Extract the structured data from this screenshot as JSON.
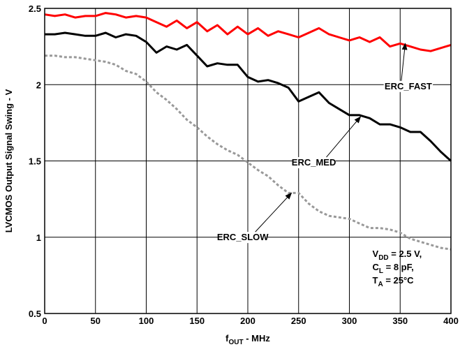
{
  "chart_data": {
    "type": "line",
    "xlabel": {
      "main": "f",
      "sub": "OUT",
      "rest": " - MHz"
    },
    "ylabel": "LVCMOS Output Signal Swing - V",
    "xlim": [
      0,
      400
    ],
    "ylim": [
      0.5,
      2.5
    ],
    "xticks": [
      0,
      50,
      100,
      150,
      200,
      250,
      300,
      350,
      400
    ],
    "yticks": [
      0.5,
      1,
      1.5,
      2,
      2.5
    ],
    "grid": true,
    "series": [
      {
        "name": "ERC_FAST",
        "color": "#ff0000",
        "style": "solid",
        "x": [
          0,
          10,
          20,
          30,
          40,
          50,
          60,
          70,
          80,
          90,
          100,
          110,
          120,
          130,
          140,
          150,
          160,
          170,
          180,
          190,
          200,
          210,
          220,
          230,
          240,
          250,
          260,
          270,
          280,
          290,
          300,
          310,
          320,
          330,
          340,
          350,
          360,
          370,
          380,
          390,
          400
        ],
        "y": [
          2.46,
          2.45,
          2.46,
          2.44,
          2.45,
          2.45,
          2.47,
          2.46,
          2.44,
          2.45,
          2.44,
          2.41,
          2.38,
          2.42,
          2.37,
          2.41,
          2.35,
          2.39,
          2.33,
          2.38,
          2.33,
          2.37,
          2.32,
          2.35,
          2.33,
          2.31,
          2.34,
          2.37,
          2.33,
          2.31,
          2.29,
          2.31,
          2.28,
          2.31,
          2.25,
          2.27,
          2.25,
          2.23,
          2.22,
          2.24,
          2.26
        ]
      },
      {
        "name": "ERC_MED",
        "color": "#000000",
        "style": "solid",
        "x": [
          0,
          10,
          20,
          30,
          40,
          50,
          60,
          70,
          80,
          90,
          100,
          110,
          120,
          130,
          140,
          150,
          160,
          170,
          180,
          190,
          200,
          210,
          220,
          230,
          240,
          250,
          260,
          270,
          280,
          290,
          300,
          310,
          320,
          330,
          340,
          350,
          360,
          370,
          380,
          390,
          400
        ],
        "y": [
          2.33,
          2.33,
          2.34,
          2.33,
          2.32,
          2.32,
          2.34,
          2.31,
          2.33,
          2.32,
          2.28,
          2.21,
          2.25,
          2.23,
          2.26,
          2.19,
          2.12,
          2.14,
          2.13,
          2.13,
          2.05,
          2.02,
          2.03,
          2.01,
          1.98,
          1.89,
          1.92,
          1.95,
          1.88,
          1.84,
          1.8,
          1.8,
          1.78,
          1.74,
          1.74,
          1.72,
          1.69,
          1.69,
          1.63,
          1.56,
          1.5
        ]
      },
      {
        "name": "ERC_SLOW",
        "color": "#999999",
        "style": "dashed",
        "x": [
          0,
          10,
          20,
          30,
          40,
          50,
          60,
          70,
          80,
          90,
          100,
          110,
          120,
          130,
          140,
          150,
          160,
          170,
          180,
          190,
          200,
          210,
          220,
          230,
          240,
          250,
          260,
          270,
          280,
          290,
          300,
          310,
          320,
          330,
          340,
          350,
          360,
          370,
          380,
          390,
          400
        ],
        "y": [
          2.19,
          2.19,
          2.18,
          2.18,
          2.17,
          2.16,
          2.15,
          2.13,
          2.09,
          2.07,
          2.02,
          1.95,
          1.9,
          1.84,
          1.77,
          1.72,
          1.66,
          1.61,
          1.57,
          1.54,
          1.49,
          1.44,
          1.4,
          1.34,
          1.29,
          1.29,
          1.22,
          1.17,
          1.14,
          1.13,
          1.12,
          1.09,
          1.06,
          1.06,
          1.05,
          1.03,
          0.99,
          0.97,
          0.95,
          0.93,
          0.92
        ]
      }
    ],
    "annotations": [
      {
        "label": "ERC_FAST",
        "series": "ERC_FAST",
        "x": 355,
        "y": 2.27,
        "text_x": 358,
        "text_y": 1.97
      },
      {
        "label": "ERC_MED",
        "series": "ERC_MED",
        "x": 311,
        "y": 1.79,
        "text_x": 265,
        "text_y": 1.47
      },
      {
        "label": "ERC_SLOW",
        "series": "ERC_SLOW",
        "x": 243,
        "y": 1.29,
        "text_x": 195,
        "text_y": 0.98
      }
    ],
    "conditions": [
      {
        "main": "V",
        "sub": "DD",
        "rest": " = 2.5 V,"
      },
      {
        "main": "C",
        "sub": "L",
        "rest": " = 8 pF,"
      },
      {
        "main": "T",
        "sub": "A",
        "rest": " = 25°C"
      }
    ]
  }
}
